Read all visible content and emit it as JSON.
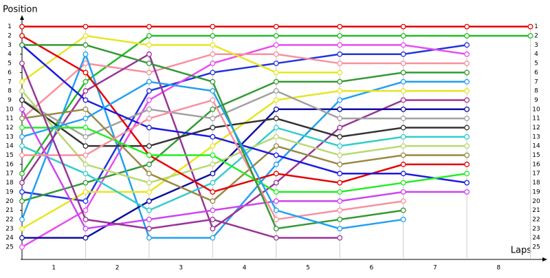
{
  "chart_data": {
    "type": "line",
    "y_label": "Position",
    "x_label": "Laps",
    "x": [
      0,
      1,
      2,
      3,
      4,
      5,
      6,
      7,
      8
    ],
    "xlim": [
      0,
      8.2
    ],
    "xticks": [
      {
        "value": 0.5,
        "label": "1"
      },
      {
        "value": 1.5,
        "label": "2"
      },
      {
        "value": 2.5,
        "label": "3"
      },
      {
        "value": 3.5,
        "label": "4"
      },
      {
        "value": 4.5,
        "label": "5"
      },
      {
        "value": 5.5,
        "label": "6"
      },
      {
        "value": 6.5,
        "label": "7"
      },
      {
        "value": 7.5,
        "label": "8"
      }
    ],
    "grid_x": [
      1,
      2,
      3,
      4,
      5,
      6,
      7,
      8
    ],
    "ylim": [
      26.2,
      0.2
    ],
    "yticks": [
      1,
      2,
      3,
      4,
      5,
      6,
      7,
      8,
      9,
      10,
      11,
      12,
      13,
      14,
      15,
      16,
      17,
      18,
      19,
      20,
      21,
      22,
      23,
      24,
      25
    ],
    "series": [
      {
        "color": "#e60000",
        "values": [
          1,
          1,
          1,
          1,
          1,
          1,
          1,
          1,
          1
        ]
      },
      {
        "color": "#22bb22",
        "values": [
          17,
          7,
          2,
          2,
          2,
          2,
          2,
          2,
          2
        ]
      },
      {
        "color": "#2233dd",
        "values": [
          19,
          20,
          8,
          6,
          5,
          4,
          4,
          3,
          null
        ]
      },
      {
        "color": "#e84cf0",
        "values": [
          25,
          21,
          9,
          5,
          3,
          3,
          3,
          4,
          null
        ]
      },
      {
        "color": "#f7909f",
        "values": [
          11,
          5,
          6,
          4,
          4,
          5,
          5,
          5,
          null
        ]
      },
      {
        "color": "#e6e620",
        "values": [
          7,
          2,
          3,
          3,
          6,
          6,
          null,
          null,
          null
        ]
      },
      {
        "color": "#339933",
        "values": [
          20,
          18,
          16,
          10,
          7,
          7,
          6,
          6,
          null
        ]
      },
      {
        "color": "#22a0f0",
        "values": [
          22,
          4,
          24,
          24,
          16,
          9,
          7,
          7,
          null
        ]
      },
      {
        "color": "#e6e620",
        "values": [
          23,
          19,
          19,
          14,
          9,
          8,
          8,
          8,
          null
        ]
      },
      {
        "color": "#993399",
        "values": [
          18,
          8,
          4,
          23,
          18,
          12,
          9,
          9,
          null
        ]
      },
      {
        "color": "#0f0fa0",
        "values": [
          24,
          24,
          20,
          17,
          10,
          10,
          10,
          10,
          null
        ]
      },
      {
        "color": "#a0a0a0",
        "values": [
          9,
          13,
          10,
          11,
          8,
          11,
          11,
          11,
          null
        ]
      },
      {
        "color": "#333333",
        "values": [
          9,
          14,
          14,
          12,
          11,
          13,
          12,
          12,
          null
        ]
      },
      {
        "color": "#33cccc",
        "values": [
          14,
          17,
          21,
          18,
          12,
          14,
          13,
          13,
          null
        ]
      },
      {
        "color": "#b8d870",
        "values": [
          8,
          16,
          18,
          16,
          13,
          15,
          14,
          14,
          null
        ]
      },
      {
        "color": "#998844",
        "values": [
          11,
          10,
          17,
          20,
          14,
          16,
          15,
          15,
          null
        ]
      },
      {
        "color": "#e60000",
        "values": [
          2,
          6,
          15,
          19,
          17,
          18,
          16,
          16,
          null
        ]
      },
      {
        "color": "#1a1ae0",
        "values": [
          3,
          9,
          12,
          13,
          15,
          17,
          17,
          18,
          null
        ]
      },
      {
        "color": "#22ee22",
        "values": [
          12,
          12,
          15,
          15,
          19,
          19,
          18,
          17,
          null
        ]
      },
      {
        "color": "#cc44f0",
        "values": [
          10,
          23,
          22,
          21,
          20,
          20,
          19,
          19,
          null
        ]
      },
      {
        "color": "#f7909f",
        "values": [
          15,
          15,
          11,
          9,
          22,
          21,
          20,
          null,
          null
        ]
      },
      {
        "color": "#339933",
        "values": [
          3,
          3,
          5,
          7,
          23,
          22,
          21,
          null,
          null
        ]
      },
      {
        "color": "#22a0f0",
        "values": [
          13,
          11,
          7,
          8,
          21,
          23,
          22,
          null,
          null
        ]
      },
      {
        "color": "#993399",
        "values": [
          5,
          22,
          23,
          22,
          24,
          24,
          null,
          null,
          null
        ]
      }
    ]
  }
}
